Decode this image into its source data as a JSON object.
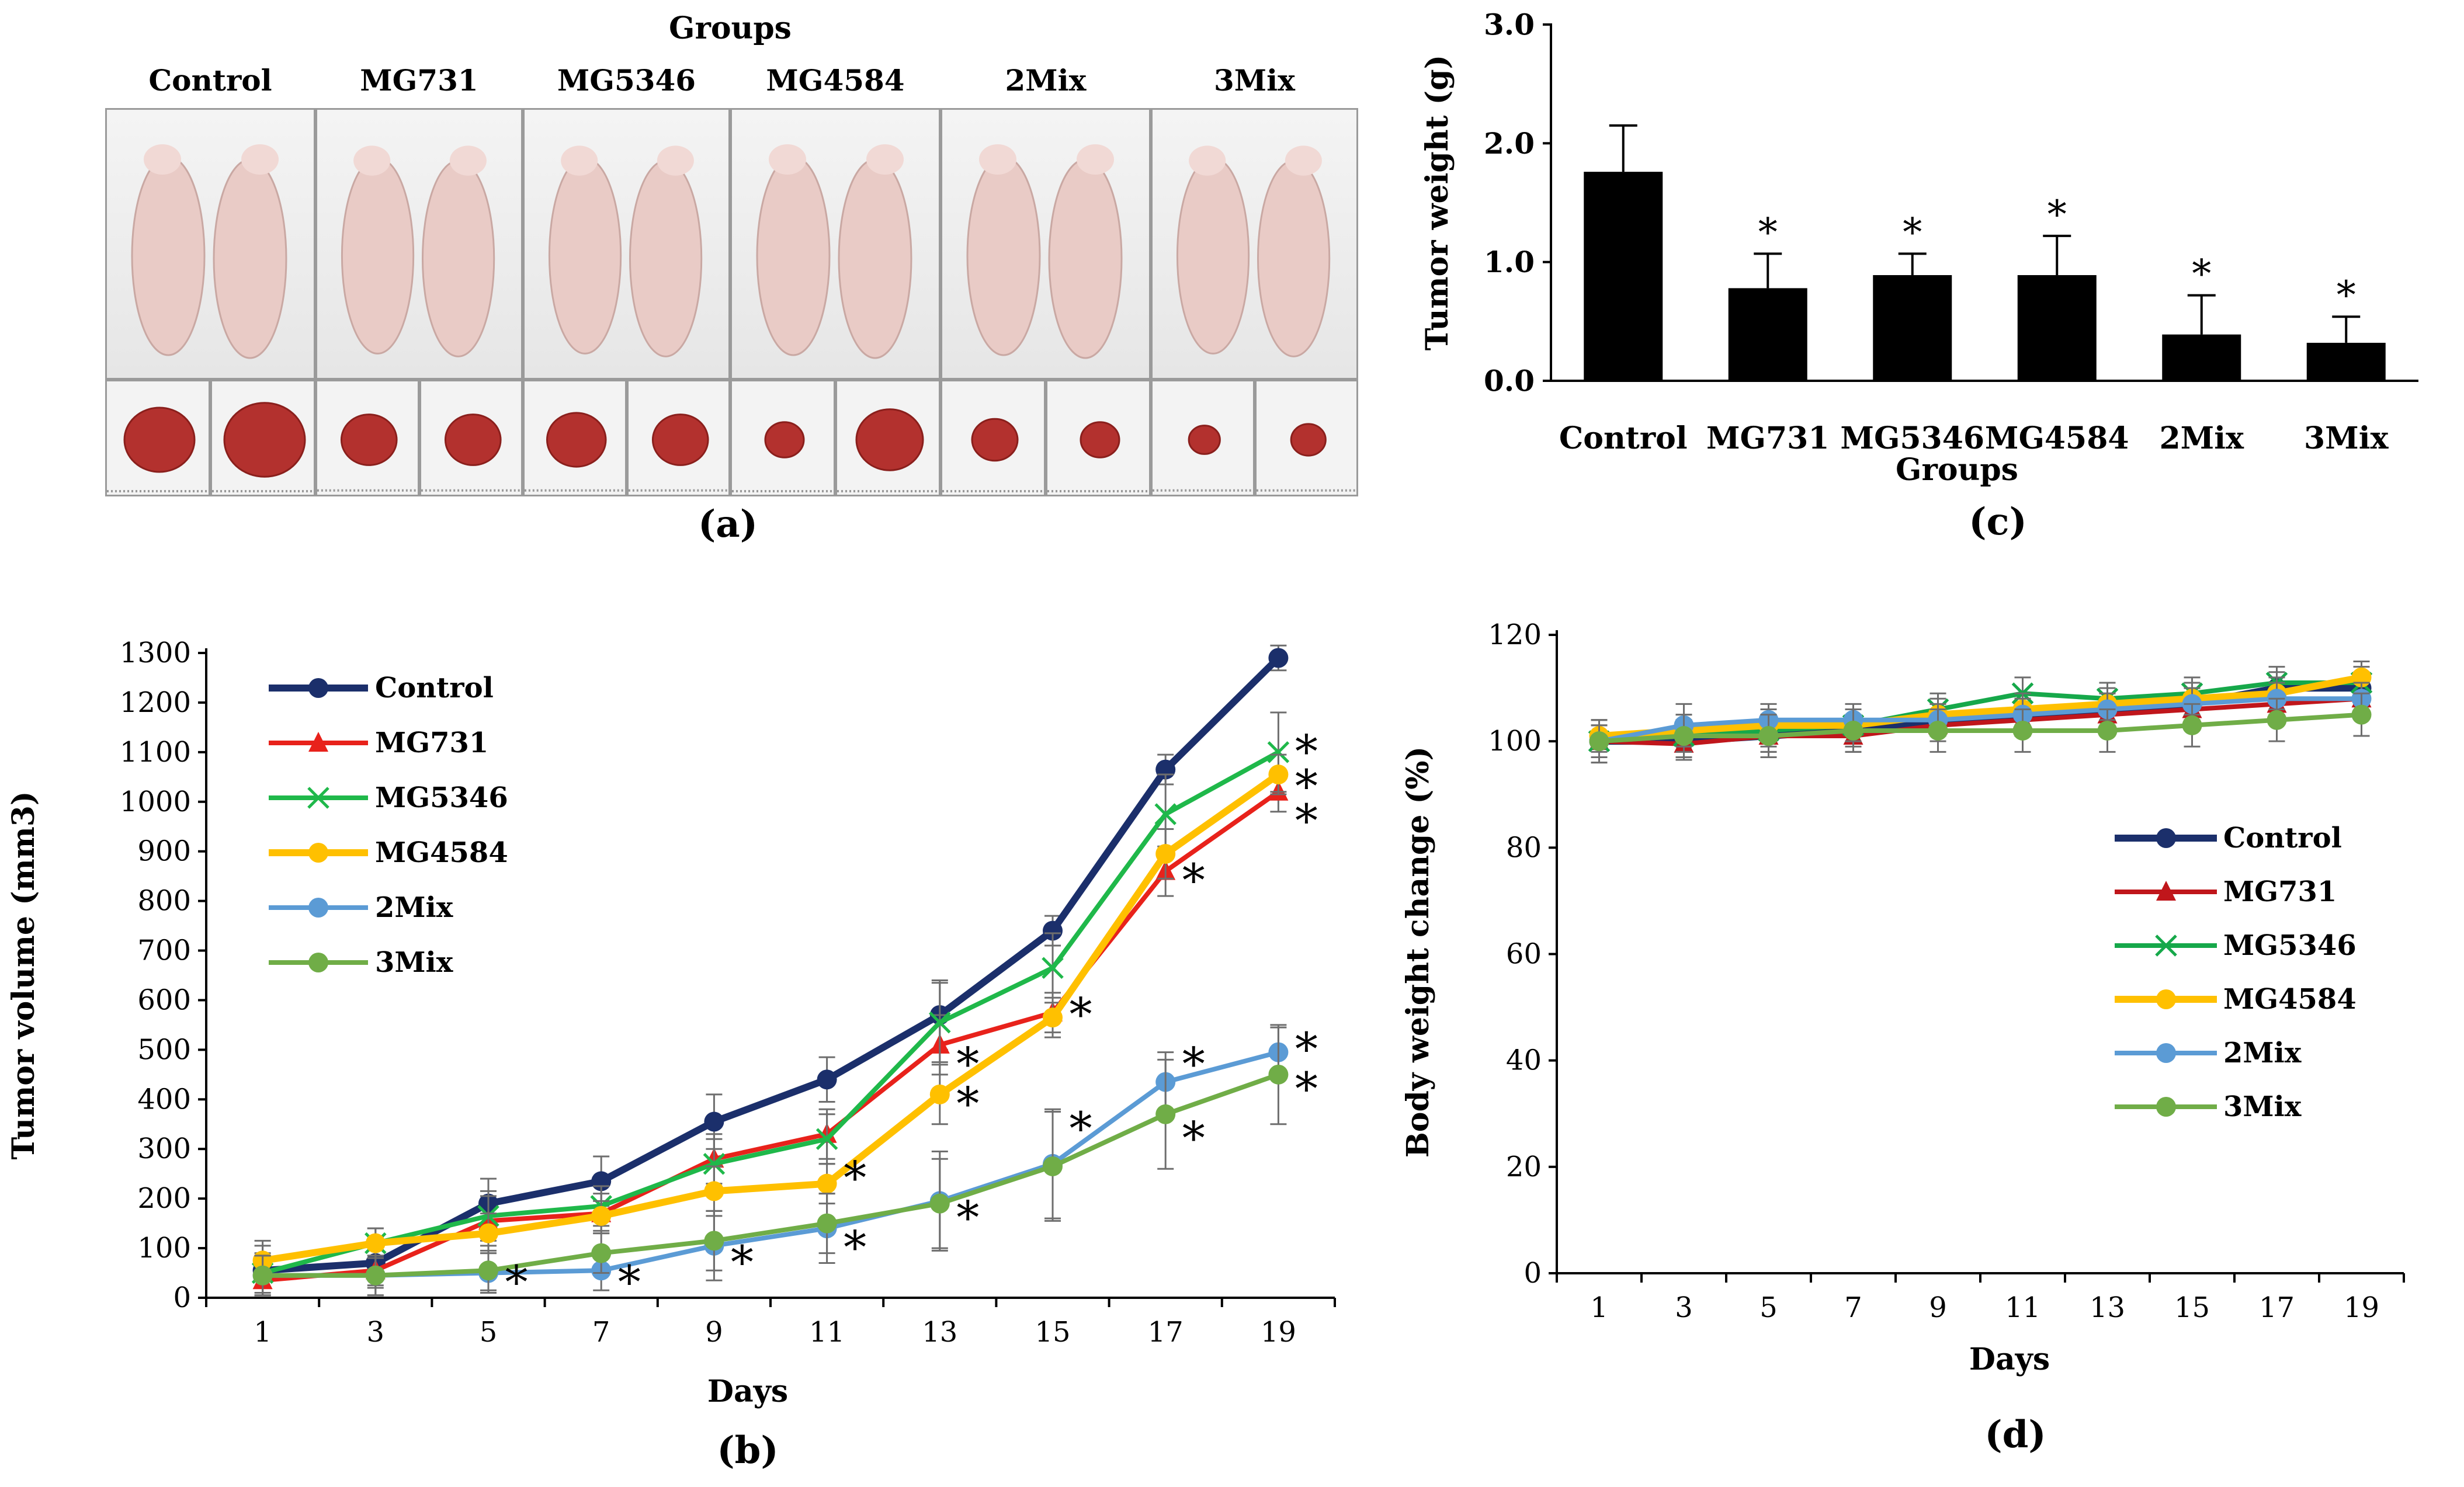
{
  "panel_a": {
    "label": "(a)",
    "title": "Groups",
    "groups": [
      "Control",
      "MG731",
      "MG5346",
      "MG4584",
      "2Mix",
      "3Mix"
    ]
  },
  "colors": {
    "Control": "#1b2f6b",
    "MG731": "#e8221b",
    "MG5346": "#1fb84a",
    "MG4584": "#ffc000",
    "2Mix": "#5b9bd5",
    "3Mix": "#70ad47",
    "MG731_d": "#c0161b",
    "MG5346_d": "#16a84a",
    "bar": "#000000",
    "skin": "#e9cbc6",
    "tumor": "#b3312e"
  },
  "chart_data": [
    {
      "id": "c",
      "label": "(c)",
      "type": "bar",
      "title": "",
      "xlabel": "Groups",
      "ylabel": "Tumor weight (g)",
      "ylim": [
        0,
        3.0
      ],
      "yticks": [
        "0.0",
        "1.0",
        "2.0",
        "3.0"
      ],
      "categories": [
        "Control",
        "MG731",
        "MG5346",
        "MG4584",
        "2Mix",
        "3Mix"
      ],
      "values": [
        1.76,
        0.78,
        0.89,
        0.89,
        0.39,
        0.32
      ],
      "errors": [
        0.39,
        0.29,
        0.18,
        0.33,
        0.33,
        0.22
      ],
      "significance": [
        "",
        "*",
        "*",
        "*",
        "*",
        "*"
      ],
      "grid": false
    },
    {
      "id": "b",
      "label": "(b)",
      "type": "line",
      "xlabel": "Days",
      "ylabel": "Tumor volume (mm3)",
      "x": [
        1,
        3,
        5,
        7,
        9,
        11,
        13,
        15,
        17,
        19
      ],
      "ylim": [
        0,
        1300
      ],
      "yticks": [
        0,
        100,
        200,
        300,
        400,
        500,
        600,
        700,
        800,
        900,
        1000,
        1100,
        1200,
        1300
      ],
      "legend_position": "top-left",
      "series": [
        {
          "name": "Control",
          "marker": "circle",
          "values": [
            55,
            70,
            190,
            235,
            355,
            440,
            570,
            740,
            1065,
            1290
          ],
          "errors": [
            50,
            50,
            50,
            50,
            55,
            45,
            70,
            30,
            30,
            25
          ]
        },
        {
          "name": "MG731",
          "marker": "triangle",
          "values": [
            35,
            55,
            155,
            170,
            280,
            330,
            510,
            575,
            860,
            1020
          ],
          "errors": [
            30,
            30,
            50,
            40,
            50,
            50,
            60,
            40,
            50,
            40
          ]
        },
        {
          "name": "MG5346",
          "marker": "x",
          "values": [
            50,
            110,
            165,
            185,
            270,
            320,
            555,
            665,
            975,
            1100
          ],
          "errors": [
            40,
            30,
            50,
            40,
            50,
            50,
            80,
            70,
            80,
            80
          ]
        },
        {
          "name": "MG4584",
          "marker": "circle",
          "values": [
            75,
            110,
            130,
            165,
            215,
            230,
            410,
            565,
            895,
            1055
          ],
          "errors": [
            40,
            30,
            40,
            30,
            50,
            40,
            60,
            40,
            50,
            40
          ]
        },
        {
          "name": "2Mix",
          "marker": "circle",
          "values": [
            45,
            45,
            50,
            55,
            105,
            140,
            195,
            270,
            435,
            495
          ],
          "errors": [
            40,
            40,
            40,
            40,
            70,
            70,
            100,
            110,
            60,
            50
          ]
        },
        {
          "name": "3Mix",
          "marker": "circle",
          "values": [
            45,
            45,
            55,
            90,
            115,
            150,
            190,
            265,
            370,
            450
          ],
          "errors": [
            40,
            40,
            40,
            40,
            60,
            60,
            90,
            110,
            110,
            100
          ]
        }
      ],
      "significance": [
        {
          "x": 5,
          "y": 30
        },
        {
          "x": 7,
          "y": 30
        },
        {
          "x": 9,
          "y": 70
        },
        {
          "x": 11,
          "y": 100
        },
        {
          "x": 11,
          "y": 240
        },
        {
          "x": 13,
          "y": 160
        },
        {
          "x": 13,
          "y": 390
        },
        {
          "x": 13,
          "y": 470
        },
        {
          "x": 15,
          "y": 570
        },
        {
          "x": 15,
          "y": 340
        },
        {
          "x": 17,
          "y": 840
        },
        {
          "x": 17,
          "y": 320
        },
        {
          "x": 17,
          "y": 470
        },
        {
          "x": 19,
          "y": 1100
        },
        {
          "x": 19,
          "y": 1030
        },
        {
          "x": 19,
          "y": 960
        },
        {
          "x": 19,
          "y": 500
        },
        {
          "x": 19,
          "y": 420
        }
      ]
    },
    {
      "id": "d",
      "label": "(d)",
      "type": "line",
      "xlabel": "Days",
      "ylabel": "Body weight change (%)",
      "x": [
        1,
        3,
        5,
        7,
        9,
        11,
        13,
        15,
        17,
        19
      ],
      "ylim": [
        0,
        120
      ],
      "yticks": [
        0,
        20,
        40,
        60,
        80,
        100,
        120
      ],
      "legend_position": "bottom-right",
      "series": [
        {
          "name": "Control",
          "marker": "circle",
          "values": [
            100,
            100,
            101,
            102,
            104,
            105,
            106,
            107,
            110,
            110
          ],
          "errors": [
            3,
            3,
            3,
            3,
            3,
            3,
            3,
            3,
            3,
            3
          ]
        },
        {
          "name": "MG731",
          "marker": "triangle",
          "values": [
            100,
            99.5,
            101,
            101,
            103,
            104,
            105,
            106,
            107,
            108
          ],
          "errors": [
            3,
            3,
            3,
            3,
            3,
            3,
            3,
            3,
            3,
            3
          ]
        },
        {
          "name": "MG5346",
          "marker": "x",
          "values": [
            100,
            101,
            102,
            103,
            106,
            109,
            108,
            109,
            111,
            111
          ],
          "errors": [
            3,
            3,
            3,
            3,
            3,
            3,
            3,
            3,
            3,
            3
          ]
        },
        {
          "name": "MG4584",
          "marker": "circle",
          "values": [
            101,
            102,
            103,
            103,
            105,
            106,
            107,
            108,
            109,
            112
          ],
          "errors": [
            3,
            3,
            3,
            3,
            3,
            3,
            3,
            3,
            3,
            3
          ]
        },
        {
          "name": "2Mix",
          "marker": "circle",
          "values": [
            100,
            103,
            104,
            104,
            104,
            105,
            106,
            107,
            108,
            108
          ],
          "errors": [
            4,
            4,
            3,
            3,
            3,
            3,
            3,
            3,
            3,
            3
          ]
        },
        {
          "name": "3Mix",
          "marker": "circle",
          "values": [
            100,
            101,
            101,
            102,
            102,
            102,
            102,
            103,
            104,
            105
          ],
          "errors": [
            4,
            4,
            4,
            4,
            4,
            4,
            4,
            4,
            4,
            4
          ]
        }
      ]
    }
  ]
}
